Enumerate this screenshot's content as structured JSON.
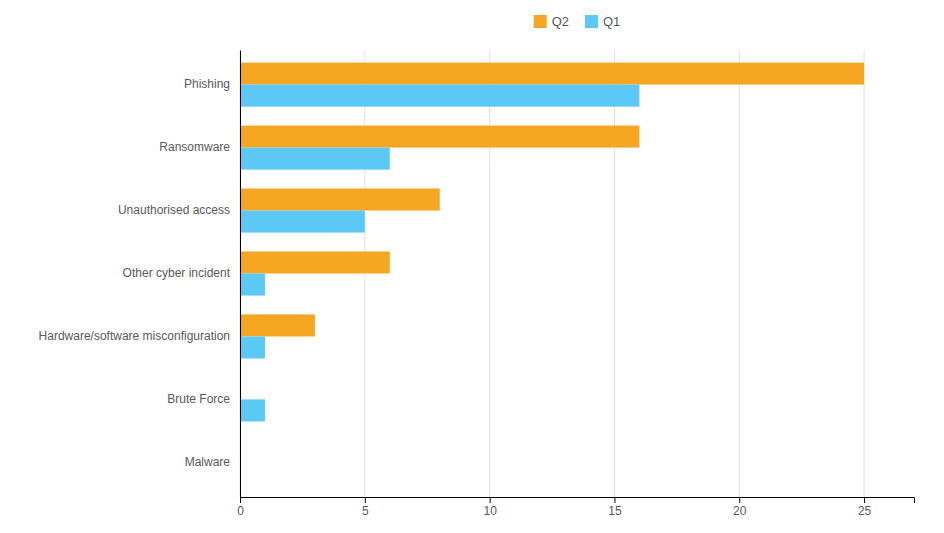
{
  "chart_data": {
    "type": "bar",
    "orientation": "horizontal",
    "categories": [
      "Phishing",
      "Ransomware",
      "Unauthorised access",
      "Other cyber incident",
      "Hardware/software misconfiguration",
      "Brute Force",
      "Malware"
    ],
    "series": [
      {
        "name": "Q2",
        "color": "#F5A623",
        "values": [
          25,
          16,
          8,
          6,
          3,
          0,
          0
        ]
      },
      {
        "name": "Q1",
        "color": "#5BC8F5",
        "values": [
          16,
          6,
          5,
          1,
          1,
          1,
          0
        ]
      }
    ],
    "xlim": [
      0,
      27
    ],
    "xticks": [
      0,
      5,
      10,
      15,
      20,
      25
    ],
    "grid": true,
    "legend": "top"
  }
}
